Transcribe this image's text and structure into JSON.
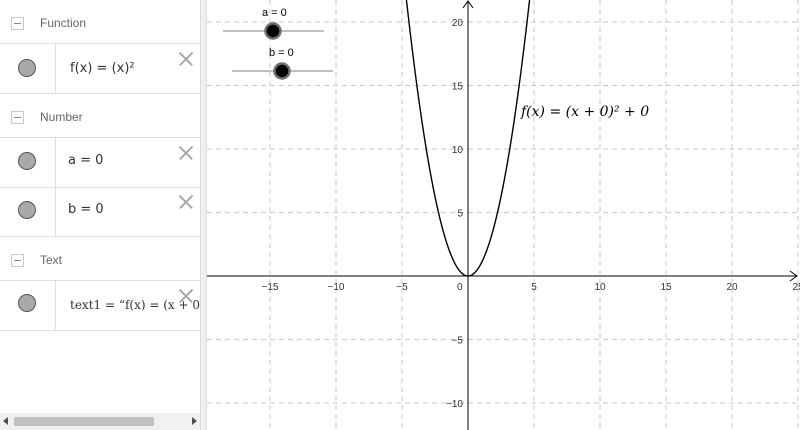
{
  "algebra": {
    "groups": [
      {
        "title": "Function",
        "items": [
          {
            "expr": "f(x) = (x)²"
          }
        ]
      },
      {
        "title": "Number",
        "items": [
          {
            "expr": "a = 0"
          },
          {
            "expr": "b = 0"
          }
        ]
      },
      {
        "title": "Text",
        "items": [
          {
            "expr": "text1 = “f(x) = (x + 0"
          }
        ]
      }
    ]
  },
  "sliders": [
    {
      "label": "a = 0",
      "value": 0
    },
    {
      "label": "b = 0",
      "value": 0
    }
  ],
  "graphics": {
    "function_label": "f(x) = (x + 0)² + 0",
    "origin_label": "0",
    "x_ticks": [
      "−15",
      "−10",
      "−5",
      "5",
      "10",
      "15",
      "20",
      "25"
    ],
    "y_ticks": [
      "20",
      "15",
      "10",
      "5",
      "−5",
      "−10"
    ],
    "curve_color": "#000000",
    "grid_color": "#c8c8c8"
  }
}
